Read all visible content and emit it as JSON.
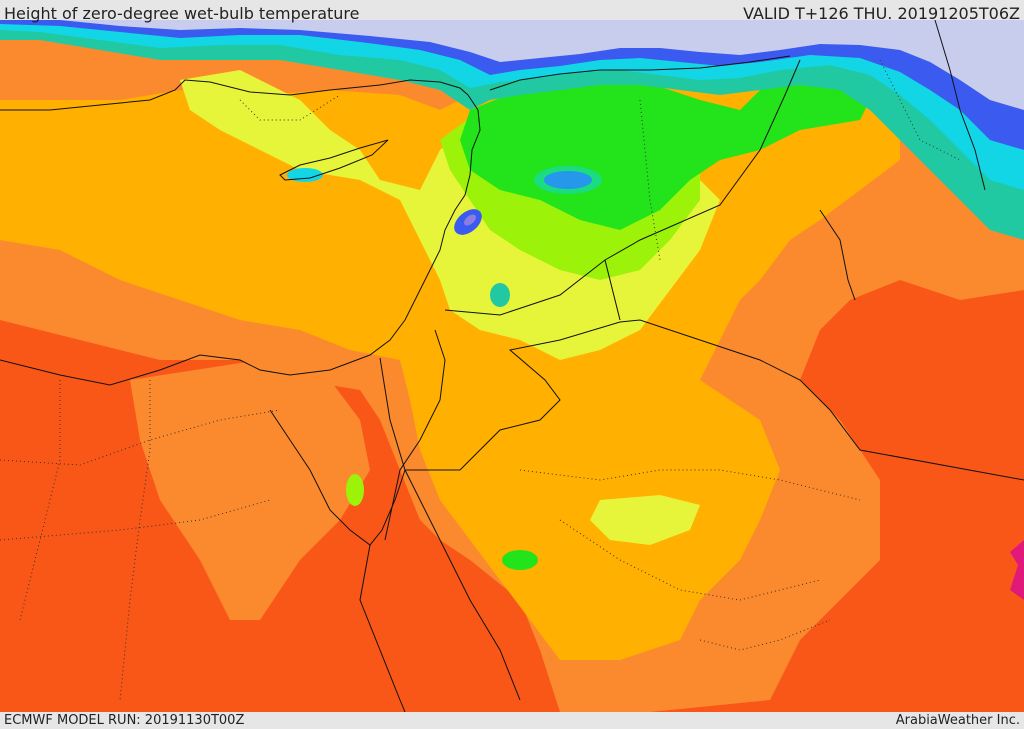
{
  "header": {
    "title": "Height of zero-degree wet-bulb temperature",
    "valid": "VALID T+126 THU. 20191205T06Z"
  },
  "footer": {
    "model_run": "ECMWF MODEL RUN: 20191130T00Z",
    "credit": "ArabiaWeather Inc."
  },
  "map": {
    "region": "Eastern Mediterranean and Middle East",
    "colors": {
      "sea_light": "#c8cdee",
      "purple": "#8a7fe0",
      "blue": "#3b5bf0",
      "cyan": "#12d6e6",
      "teal": "#21c9a3",
      "green": "#23e31a",
      "lightgreen": "#9df20a",
      "yellowgreen": "#e6f53a",
      "yellow": "#ffb000",
      "orange": "#fb8a2e",
      "redorange": "#f95718",
      "magenta": "#e0197a",
      "border": "#111111",
      "coast": "#111111"
    }
  }
}
